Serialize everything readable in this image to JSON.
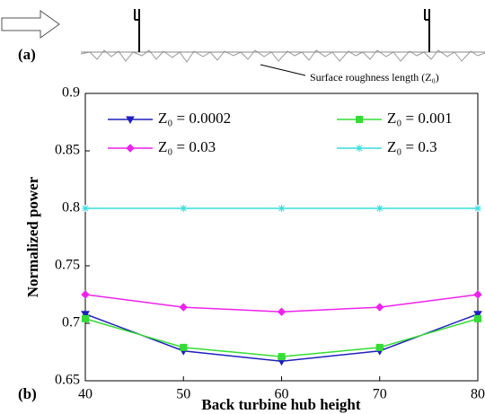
{
  "chart_data": {
    "type": "line",
    "panel_a_label": "(a)",
    "panel_b_label": "(b)",
    "annotation": "Surface roughness length (Z₀)",
    "x_label": "Back turbine hub height",
    "y_label": "Normalized power",
    "x": [
      40,
      50,
      60,
      70,
      80
    ],
    "xlim": [
      40,
      80
    ],
    "xticks": [
      40,
      50,
      60,
      70,
      80
    ],
    "ylim": [
      0.65,
      0.9
    ],
    "yticks": [
      0.65,
      0.7,
      0.75,
      0.8,
      0.85,
      0.9
    ],
    "series": [
      {
        "name": "Z₀ = 0.0002",
        "color": "#1f1fbf",
        "marker": "triangle-down",
        "values": [
          0.708,
          0.676,
          0.667,
          0.676,
          0.708
        ]
      },
      {
        "name": "Z₀ = 0.001",
        "color": "#33dd33",
        "marker": "square",
        "values": [
          0.704,
          0.679,
          0.671,
          0.679,
          0.704
        ]
      },
      {
        "name": "Z₀ = 0.03",
        "color": "#ee22ee",
        "marker": "diamond",
        "values": [
          0.725,
          0.714,
          0.71,
          0.714,
          0.725
        ]
      },
      {
        "name": "Z₀ = 0.3",
        "color": "#33dddd",
        "marker": "asterisk",
        "values": [
          0.8,
          0.8,
          0.8,
          0.8,
          0.8
        ]
      }
    ]
  }
}
